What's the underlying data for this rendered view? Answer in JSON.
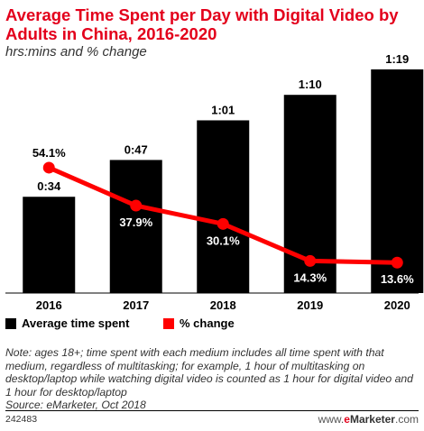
{
  "header": {
    "title": "Average Time Spent per Day with Digital Video by Adults in China, 2016-2020",
    "subtitle": "hrs:mins and % change"
  },
  "legend": {
    "bar_label": "Average time spent",
    "line_label": "% change"
  },
  "note": {
    "text": "Note: ages 18+; time spent with each medium includes all time spent with that medium, regardless of multitasking; for example, 1 hour of multitasking on desktop/laptop while watching digital video is counted as 1 hour for digital video and 1 hour for desktop/laptop",
    "source": "Source: eMarketer, Oct 2018"
  },
  "footer": {
    "id": "242483",
    "brand_prefix": "www.",
    "brand_e": "e",
    "brand_name": "Marketer",
    "brand_suffix": ".com"
  },
  "colors": {
    "bar": "#000000",
    "line": "#ff0000",
    "title": "#e3001b"
  },
  "chart_data": {
    "type": "bar",
    "categories": [
      "2016",
      "2017",
      "2018",
      "2019",
      "2020"
    ],
    "series": [
      {
        "name": "Average time spent",
        "type": "bar",
        "values": [
          34,
          47,
          61,
          70,
          79
        ],
        "labels": [
          "0:34",
          "0:47",
          "1:01",
          "1:10",
          "1:19"
        ],
        "unit": "minutes"
      },
      {
        "name": "% change",
        "type": "line",
        "values": [
          54.1,
          37.9,
          30.1,
          14.3,
          13.6
        ],
        "labels": [
          "54.1%",
          "37.9%",
          "30.1%",
          "14.3%",
          "13.6%"
        ]
      }
    ],
    "title": "Average Time Spent per Day with Digital Video by Adults in China, 2016-2020",
    "subtitle": "hrs:mins and % change",
    "legend_position": "bottom-left",
    "grid": false
  }
}
